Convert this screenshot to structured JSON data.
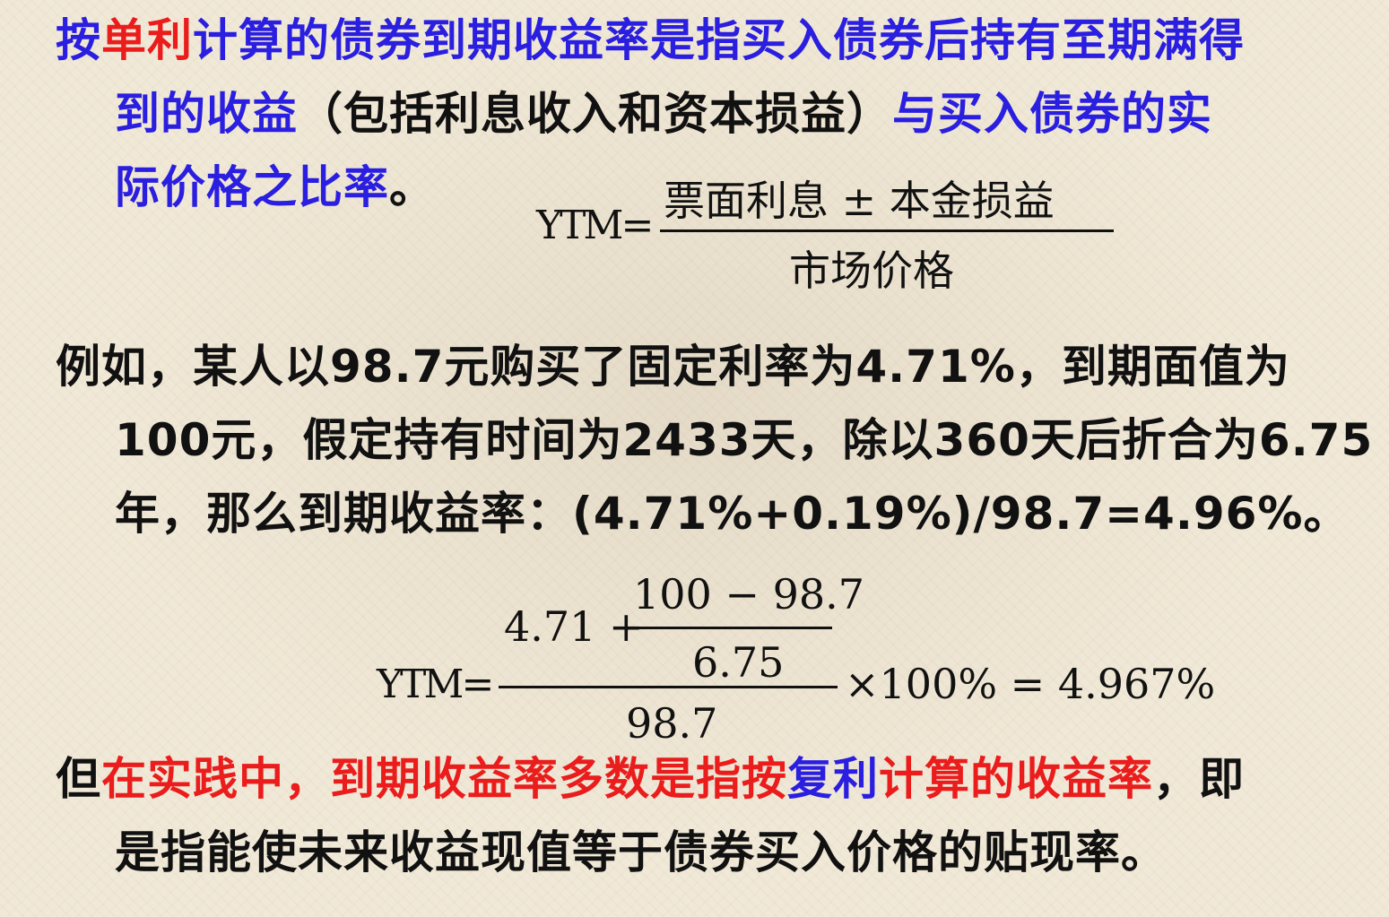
{
  "definition": {
    "l1_a": "按",
    "l1_b": "单利",
    "l1_c": "计算的债券到期收益率是指买入债券后持有至期满得",
    "l2_a": "到的收益",
    "l2_b": "（包括利息收入和资本损益）",
    "l2_c": "与买入债券的实",
    "l3_a": "际价格之比率",
    "l3_b": "。"
  },
  "formula1": {
    "lhs": "YTM=",
    "numerator": "票面利息 ± 本金损益",
    "denominator": "市场价格"
  },
  "example": {
    "l1": "例如，某人以98.7元购买了固定利率为4.71%，到期面值为",
    "l2": "100元，假定持有时间为2433天，除以360天后折合为6.75",
    "l3": "年，那么到期收益率：(4.71%+0.19%)/98.7=4.96%。"
  },
  "formula2": {
    "lhs": "YTM=",
    "inner_prefix": "4.71 +",
    "inner_numerator": "100 − 98.7",
    "inner_denominator": "6.75",
    "outer_denominator": "98.7",
    "rhs": "×100% = 4.967%"
  },
  "practice": {
    "l1_a": "但",
    "l1_b": "在实践中，到期收益率多数是指按",
    "l1_c": "复利",
    "l1_d": "计算的收益率",
    "l1_e": "，即",
    "l2": "是指能使未来收益现值等于债券买入价格的贴现率。"
  }
}
